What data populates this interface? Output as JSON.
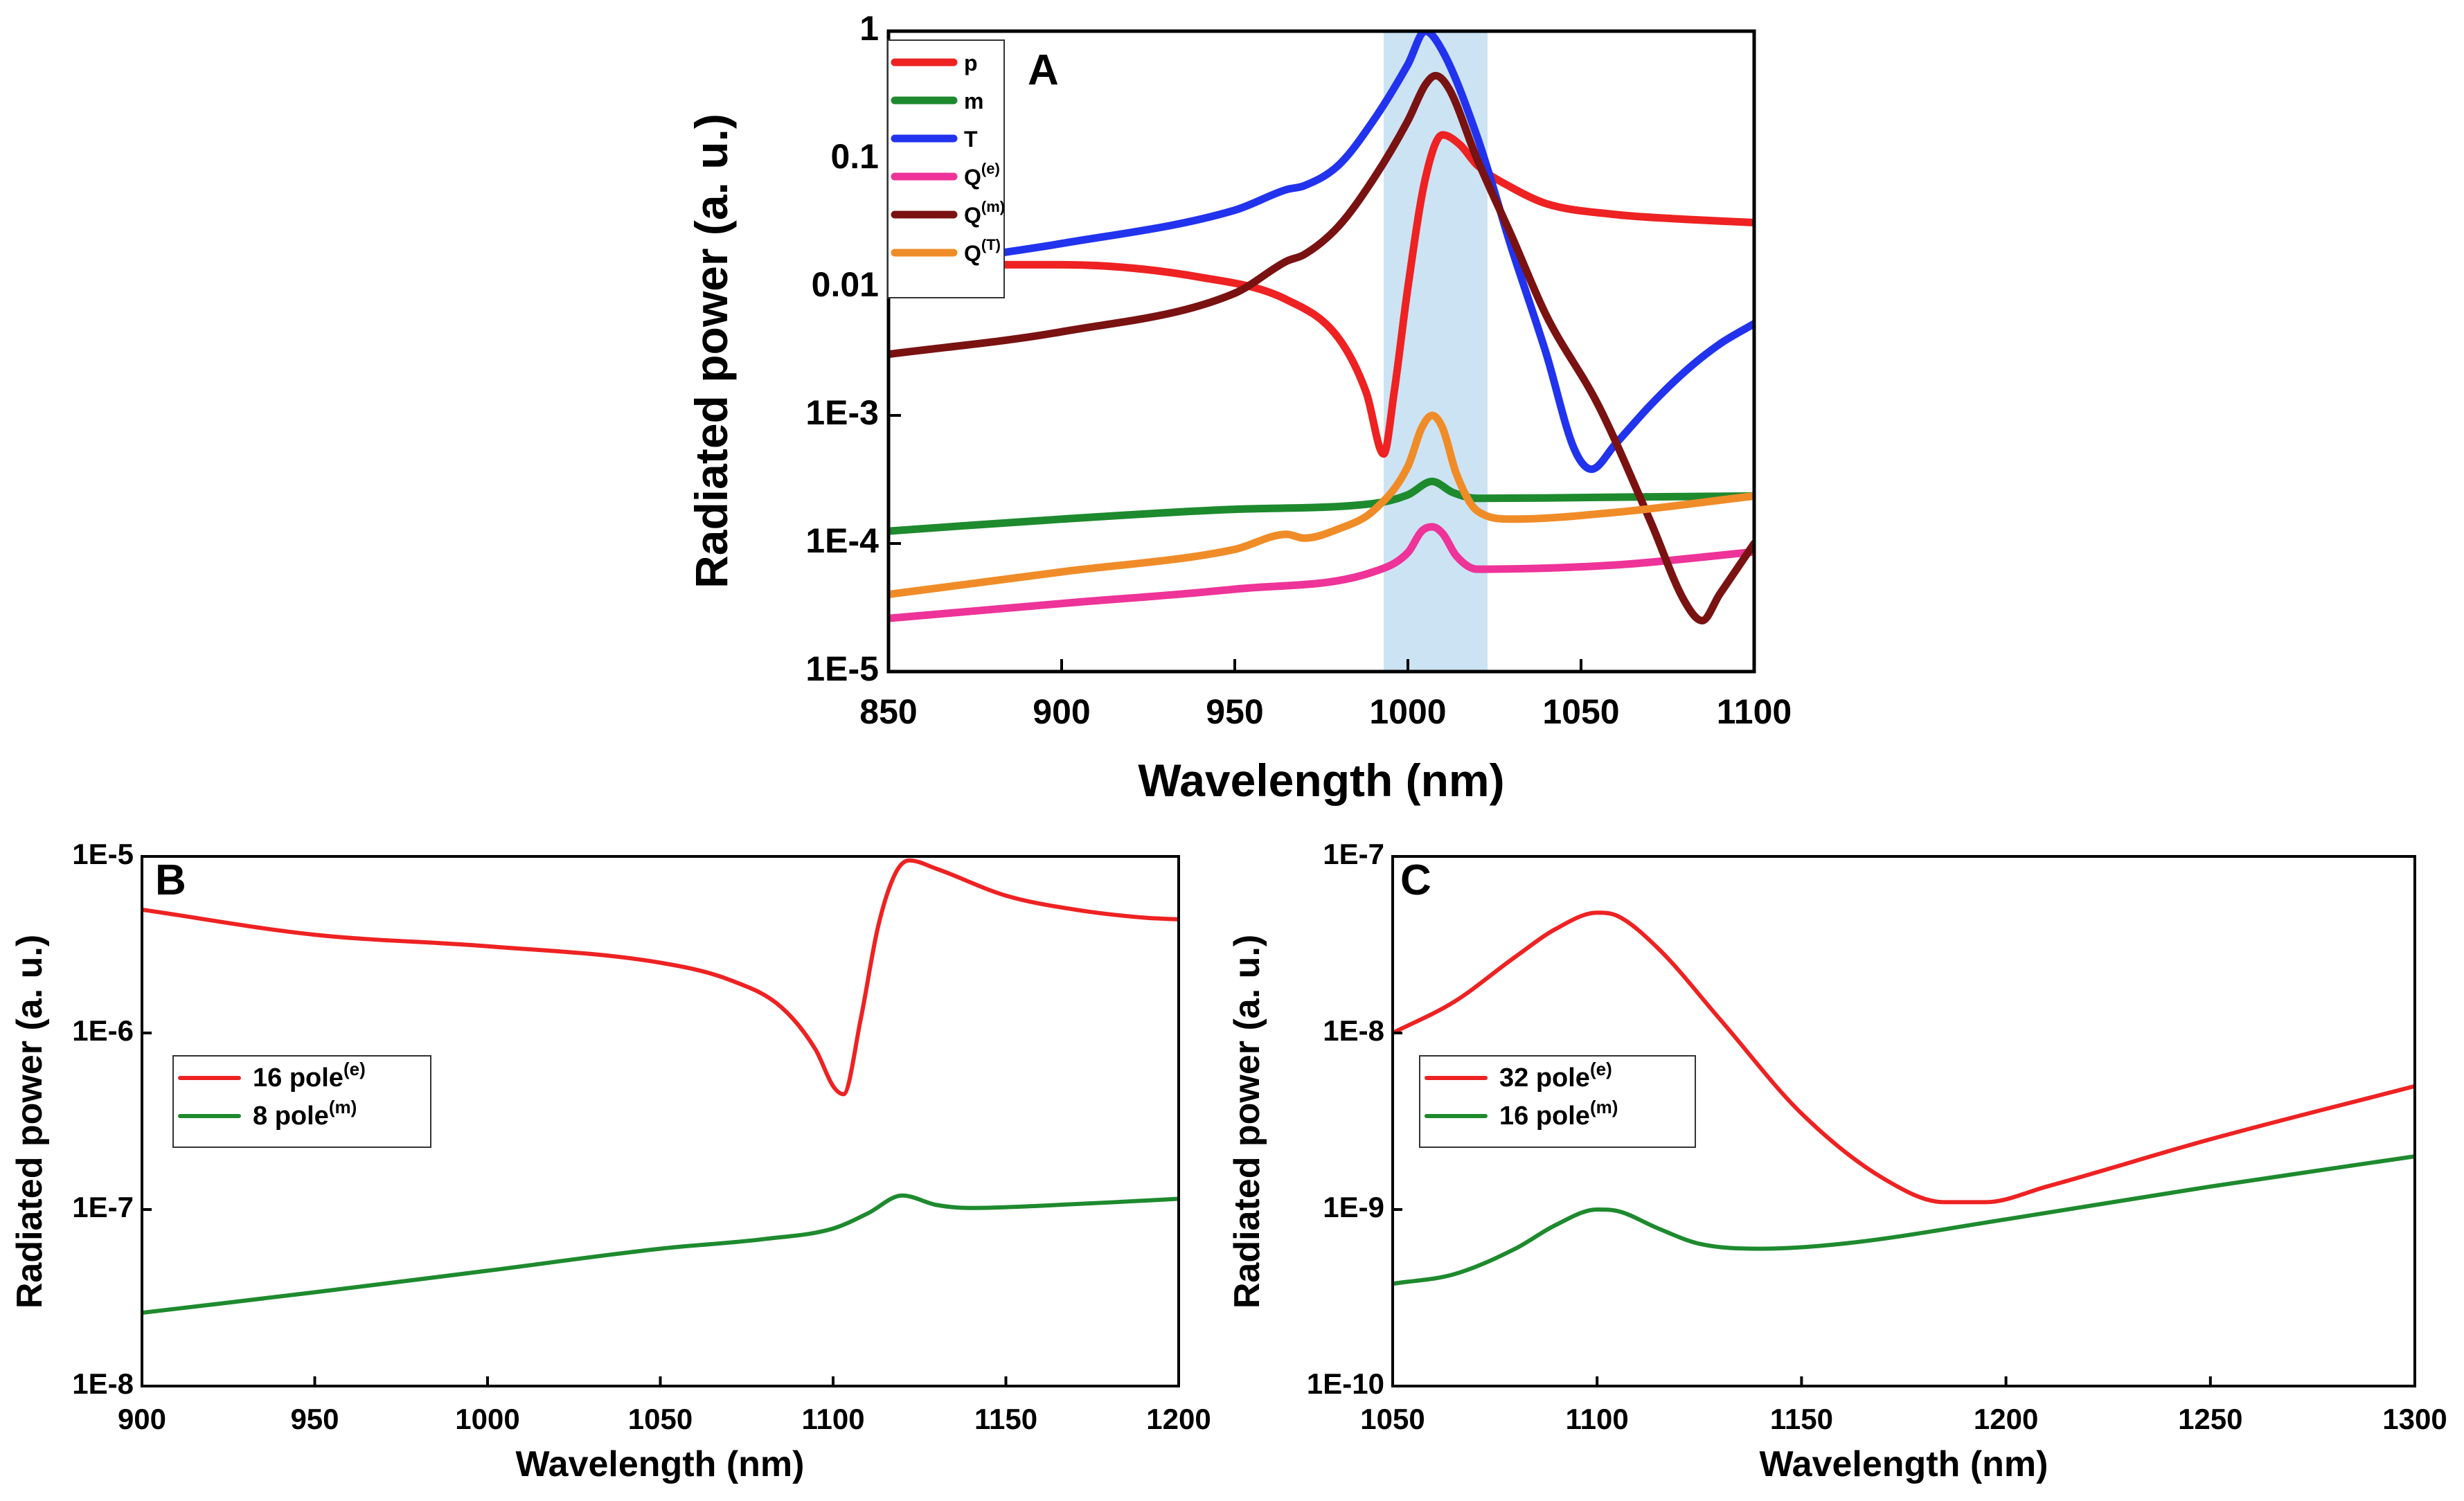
{
  "chart_data": [
    {
      "type": "line",
      "panel": "A",
      "xlabel": "Wavelength (nm)",
      "ylabel": "Radiated power (a. u.)",
      "xlim": [
        850,
        1100
      ],
      "ylim": [
        1e-05,
        1
      ],
      "yscale": "log",
      "x_ticks": [
        "850",
        "900",
        "950",
        "1000",
        "1050",
        "1100"
      ],
      "y_ticks": [
        "1E-5",
        "1E-4",
        "1E-3",
        "0.01",
        "0.1",
        "1"
      ],
      "highlight_band": [
        993,
        1023
      ],
      "legend_position": "top-left",
      "series": [
        {
          "name": "p",
          "sup": "",
          "color": "#ee2222",
          "x": [
            850,
            900,
            940,
            965,
            980,
            988,
            993,
            996,
            1000,
            1005,
            1010,
            1015,
            1020,
            1030,
            1040,
            1060,
            1080,
            1100
          ],
          "y": [
            0.015,
            0.015,
            0.012,
            0.008,
            0.004,
            0.0015,
            0.0005,
            0.0015,
            0.01,
            0.07,
            0.155,
            0.13,
            0.09,
            0.06,
            0.045,
            0.037,
            0.034,
            0.032
          ]
        },
        {
          "name": "m",
          "sup": "",
          "color": "#1e8a2e",
          "x": [
            850,
            900,
            950,
            990,
            1000,
            1007,
            1013,
            1020,
            1060,
            1100
          ],
          "y": [
            0.000125,
            0.000155,
            0.000185,
            0.000205,
            0.00024,
            0.000305,
            0.00025,
            0.000225,
            0.00023,
            0.000235
          ]
        },
        {
          "name": "T",
          "sup": "",
          "color": "#2233ee",
          "x": [
            850,
            900,
            950,
            965,
            970,
            980,
            990,
            1000,
            1005,
            1010,
            1020,
            1030,
            1040,
            1048,
            1053,
            1060,
            1070,
            1080,
            1090,
            1100
          ],
          "y": [
            0.014,
            0.022,
            0.04,
            0.058,
            0.062,
            0.09,
            0.2,
            0.55,
            1.0,
            0.7,
            0.15,
            0.02,
            0.003,
            0.00055,
            0.00038,
            0.0006,
            0.0012,
            0.0022,
            0.0036,
            0.0052
          ]
        },
        {
          "name": "Q",
          "sup": "(e)",
          "color": "#ee3399",
          "x": [
            850,
            900,
            950,
            990,
            1000,
            1004,
            1007,
            1010,
            1014,
            1020,
            1060,
            1100
          ],
          "y": [
            2.6e-05,
            3.4e-05,
            4.4e-05,
            6e-05,
            8.5e-05,
            0.000125,
            0.000135,
            0.00012,
            8e-05,
            6.3e-05,
            6.8e-05,
            8.6e-05
          ]
        },
        {
          "name": "Q",
          "sup": "(m)",
          "color": "#7a1212",
          "x": [
            850,
            900,
            950,
            965,
            970,
            980,
            990,
            1000,
            1005,
            1008,
            1012,
            1020,
            1030,
            1040,
            1055,
            1070,
            1080,
            1085,
            1090,
            1100
          ],
          "y": [
            0.003,
            0.0045,
            0.009,
            0.016,
            0.018,
            0.03,
            0.07,
            0.2,
            0.38,
            0.45,
            0.35,
            0.1,
            0.025,
            0.006,
            0.0012,
            0.00015,
            3.5e-05,
            2.5e-05,
            4e-05,
            0.0001
          ]
        },
        {
          "name": "Q",
          "sup": "(T)",
          "color": "#f08c28",
          "x": [
            850,
            900,
            950,
            965,
            970,
            980,
            990,
            1000,
            1004,
            1007,
            1010,
            1014,
            1020,
            1030,
            1060,
            1100
          ],
          "y": [
            4e-05,
            6e-05,
            9e-05,
            0.000118,
            0.00011,
            0.00013,
            0.00018,
            0.0004,
            0.0008,
            0.001,
            0.0008,
            0.00035,
            0.00018,
            0.000155,
            0.000175,
            0.000235
          ]
        }
      ]
    },
    {
      "type": "line",
      "panel": "B",
      "xlabel": "Wavelength (nm)",
      "ylabel": "Radiated power (a. u.)",
      "xlim": [
        900,
        1200
      ],
      "ylim": [
        1e-08,
        1e-05
      ],
      "yscale": "log",
      "x_ticks": [
        "900",
        "950",
        "1000",
        "1050",
        "1100",
        "1150",
        "1200"
      ],
      "y_ticks": [
        "1E-8",
        "1E-7",
        "1E-6",
        "1E-5"
      ],
      "legend_position": "center-left",
      "series": [
        {
          "name": "16 pole",
          "sup": "(e)",
          "color": "#ee2222",
          "x": [
            900,
            950,
            1000,
            1050,
            1070,
            1085,
            1095,
            1100,
            1103,
            1108,
            1113,
            1118,
            1122,
            1130,
            1150,
            1170,
            1190,
            1200
          ],
          "y": [
            5e-06,
            3.6e-06,
            3.1e-06,
            2.5e-06,
            2e-06,
            1.4e-06,
            8e-07,
            5e-07,
            4.5e-07,
            1.2e-06,
            4e-06,
            8e-06,
            9.5e-06,
            8.5e-06,
            6e-06,
            5e-06,
            4.5e-06,
            4.4e-06
          ]
        },
        {
          "name": "8 pole",
          "sup": "(m)",
          "color": "#1e8a2e",
          "x": [
            900,
            950,
            1000,
            1050,
            1080,
            1100,
            1110,
            1120,
            1130,
            1140,
            1160,
            1200
          ],
          "y": [
            2.6e-08,
            3.4e-08,
            4.5e-08,
            6e-08,
            6.8e-08,
            7.8e-08,
            9.5e-08,
            1.2e-07,
            1.06e-07,
            1.02e-07,
            1.05e-07,
            1.15e-07
          ]
        }
      ]
    },
    {
      "type": "line",
      "panel": "C",
      "xlabel": "Wavelength (nm)",
      "ylabel": "Radiated power (a. u.)",
      "xlim": [
        1050,
        1300
      ],
      "ylim": [
        1e-10,
        1e-07
      ],
      "yscale": "log",
      "x_ticks": [
        "1050",
        "1100",
        "1150",
        "1200",
        "1250",
        "1300"
      ],
      "y_ticks": [
        "1E-10",
        "1E-9",
        "1E-8",
        "1E-7"
      ],
      "legend_position": "center-left",
      "series": [
        {
          "name": "32 pole",
          "sup": "(e)",
          "color": "#ee2222",
          "x": [
            1050,
            1065,
            1080,
            1090,
            1100,
            1105,
            1115,
            1130,
            1150,
            1170,
            1185,
            1195,
            1210,
            1250,
            1300
          ],
          "y": [
            1e-08,
            1.5e-08,
            2.7e-08,
            3.9e-08,
            4.8e-08,
            4.6e-08,
            3e-08,
            1.2e-08,
            3.5e-09,
            1.5e-09,
            1.1e-09,
            1.1e-09,
            1.35e-09,
            2.5e-09,
            5e-09
          ]
        },
        {
          "name": "16 pole",
          "sup": "(m)",
          "color": "#1e8a2e",
          "x": [
            1050,
            1065,
            1080,
            1090,
            1100,
            1105,
            1115,
            1125,
            1140,
            1160,
            1200,
            1250,
            1300
          ],
          "y": [
            3.8e-10,
            4.3e-10,
            6e-10,
            8.2e-10,
            1e-09,
            9.8e-10,
            7.8e-10,
            6.4e-10,
            6e-10,
            6.4e-10,
            8.8e-10,
            1.35e-09,
            2e-09
          ]
        }
      ]
    }
  ]
}
